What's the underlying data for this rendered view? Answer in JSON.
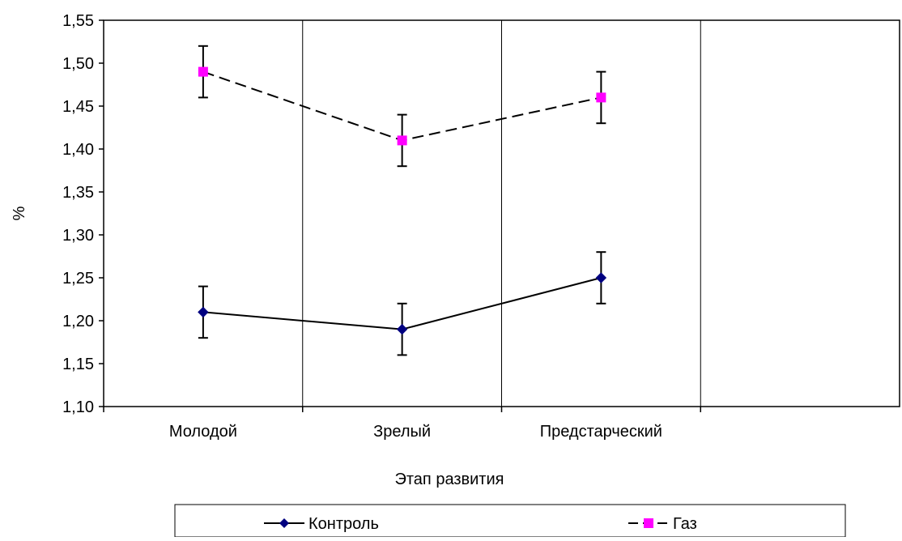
{
  "chart_data": {
    "type": "line",
    "title": "",
    "xlabel": "Этап развития",
    "ylabel": "%",
    "categories": [
      "Молодой",
      "Зрелый",
      "Предстарческий"
    ],
    "ylim": [
      1.1,
      1.55
    ],
    "yticks": [
      "1,10",
      "1,15",
      "1,20",
      "1,25",
      "1,30",
      "1,35",
      "1,40",
      "1,45",
      "1,50",
      "1,55"
    ],
    "grid": "vertical",
    "legend_position": "bottom",
    "series": [
      {
        "name": "Контроль",
        "values": [
          1.21,
          1.19,
          1.25
        ],
        "error": [
          0.03,
          0.03,
          0.03
        ],
        "color": "#000080",
        "marker": "diamond",
        "line_style": "solid"
      },
      {
        "name": "Газ",
        "values": [
          1.49,
          1.41,
          1.46
        ],
        "error": [
          0.03,
          0.03,
          0.03
        ],
        "color": "#FF00FF",
        "marker": "square",
        "line_style": "dashed"
      }
    ]
  }
}
